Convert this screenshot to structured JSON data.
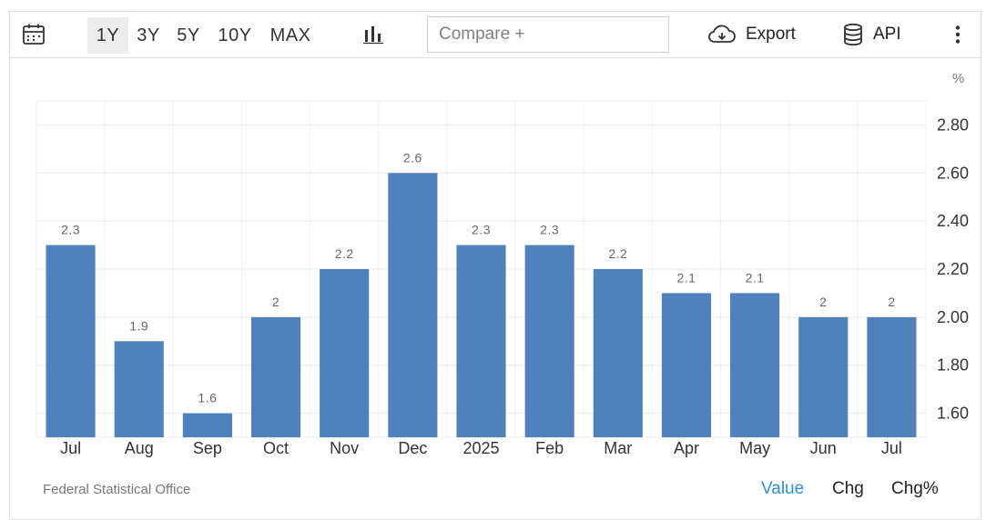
{
  "toolbar": {
    "ranges": [
      "1Y",
      "3Y",
      "5Y",
      "10Y",
      "MAX"
    ],
    "active_range": "1Y",
    "compare_placeholder": "Compare +",
    "export_label": "Export",
    "api_label": "API"
  },
  "unit_label": "%",
  "chart_data": {
    "type": "bar",
    "categories": [
      "Jul",
      "Aug",
      "Sep",
      "Oct",
      "Nov",
      "Dec",
      "2025",
      "Feb",
      "Mar",
      "Apr",
      "May",
      "Jun",
      "Jul"
    ],
    "values": [
      2.3,
      1.9,
      1.6,
      2.0,
      2.2,
      2.6,
      2.3,
      2.3,
      2.2,
      2.1,
      2.1,
      2.0,
      2.0
    ],
    "data_labels": [
      "2.3",
      "1.9",
      "1.6",
      "2",
      "2.2",
      "2.6",
      "2.3",
      "2.3",
      "2.2",
      "2.1",
      "2.1",
      "2",
      "2"
    ],
    "yticks": [
      "1.60",
      "1.80",
      "2.00",
      "2.20",
      "2.40",
      "2.60",
      "2.80"
    ],
    "ylim": [
      1.5,
      2.9
    ],
    "yaxis_position": "right",
    "grid": true,
    "bar_color": "#4f81bd",
    "title": "",
    "xlabel": "",
    "ylabel": ""
  },
  "footer": {
    "source": "Federal Statistical Office",
    "tabs": [
      "Value",
      "Chg",
      "Chg%"
    ],
    "active_tab": "Value",
    "active_color": "#2e8ee0"
  }
}
